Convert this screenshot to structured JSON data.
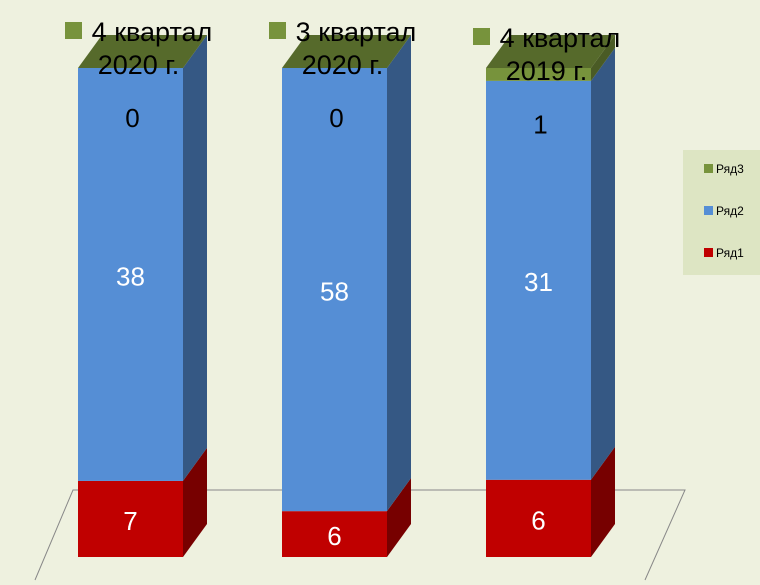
{
  "chart_data": {
    "type": "bar",
    "stacked": "percent",
    "categories": [
      "4 квартал 2020 г.",
      "3 квартал 2020 г.",
      "4 квартал 2019 г."
    ],
    "series": [
      {
        "name": "Ряд1",
        "color": "#c00000",
        "values": [
          7,
          6,
          6
        ]
      },
      {
        "name": "Ряд2",
        "color": "#558ed5",
        "values": [
          38,
          58,
          31
        ]
      },
      {
        "name": "Ряд3",
        "color": "#77933c",
        "values": [
          0,
          0,
          1
        ]
      }
    ],
    "legend": "right"
  }
}
